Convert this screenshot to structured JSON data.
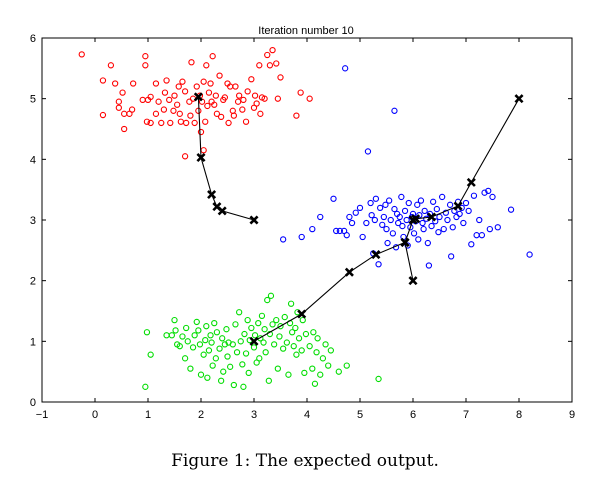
{
  "figure": {
    "caption": "Figure 1: The expected output."
  },
  "chart_data": {
    "type": "scatter",
    "title": "Iteration number 10",
    "xlabel": "",
    "ylabel": "",
    "xlim": [
      -1,
      9
    ],
    "ylim": [
      0,
      6
    ],
    "x_ticks": [
      -1,
      0,
      1,
      2,
      3,
      4,
      5,
      6,
      7,
      8,
      9
    ],
    "y_ticks": [
      0,
      1,
      2,
      3,
      4,
      5,
      6
    ],
    "grid": false,
    "legend": "none",
    "marker": "open-circle",
    "series": [
      {
        "color": "#ff0000",
        "points": [
          [
            -0.25,
            5.73
          ],
          [
            0.15,
            4.73
          ],
          [
            0.15,
            5.3
          ],
          [
            0.3,
            5.55
          ],
          [
            0.38,
            5.25
          ],
          [
            0.45,
            4.95
          ],
          [
            0.45,
            4.85
          ],
          [
            0.52,
            5.1
          ],
          [
            0.55,
            4.75
          ],
          [
            0.55,
            4.5
          ],
          [
            0.65,
            4.75
          ],
          [
            0.7,
            4.82
          ],
          [
            0.72,
            5.25
          ],
          [
            0.9,
            4.98
          ],
          [
            0.95,
            5.7
          ],
          [
            0.95,
            5.55
          ],
          [
            0.98,
            4.62
          ],
          [
            1.0,
            4.98
          ],
          [
            1.05,
            5.03
          ],
          [
            1.05,
            4.6
          ],
          [
            1.15,
            4.75
          ],
          [
            1.15,
            5.25
          ],
          [
            1.2,
            4.95
          ],
          [
            1.25,
            4.6
          ],
          [
            1.3,
            4.82
          ],
          [
            1.32,
            5.1
          ],
          [
            1.35,
            5.3
          ],
          [
            1.4,
            4.98
          ],
          [
            1.42,
            4.6
          ],
          [
            1.48,
            4.8
          ],
          [
            1.5,
            5.05
          ],
          [
            1.55,
            4.9
          ],
          [
            1.58,
            5.2
          ],
          [
            1.6,
            4.75
          ],
          [
            1.62,
            4.62
          ],
          [
            1.65,
            5.28
          ],
          [
            1.7,
            5.12
          ],
          [
            1.7,
            4.05
          ],
          [
            1.72,
            4.6
          ],
          [
            1.78,
            4.95
          ],
          [
            1.8,
            4.72
          ],
          [
            1.82,
            5.6
          ],
          [
            1.85,
            5.0
          ],
          [
            1.88,
            4.6
          ],
          [
            1.92,
            5.2
          ],
          [
            1.95,
            4.8
          ],
          [
            1.98,
            5.05
          ],
          [
            2.0,
            4.45
          ],
          [
            2.02,
            4.95
          ],
          [
            2.05,
            5.28
          ],
          [
            2.05,
            4.15
          ],
          [
            2.08,
            4.62
          ],
          [
            2.1,
            5.55
          ],
          [
            2.12,
            4.88
          ],
          [
            2.15,
            5.1
          ],
          [
            2.18,
            5.25
          ],
          [
            2.2,
            4.95
          ],
          [
            2.22,
            5.7
          ],
          [
            2.25,
            4.9
          ],
          [
            2.28,
            5.05
          ],
          [
            2.3,
            4.75
          ],
          [
            2.35,
            5.38
          ],
          [
            2.38,
            4.7
          ],
          [
            2.42,
            4.98
          ],
          [
            2.45,
            5.02
          ],
          [
            2.5,
            5.25
          ],
          [
            2.52,
            4.6
          ],
          [
            2.55,
            5.2
          ],
          [
            2.6,
            4.8
          ],
          [
            2.62,
            4.72
          ],
          [
            2.65,
            5.2
          ],
          [
            2.7,
            4.95
          ],
          [
            2.72,
            5.05
          ],
          [
            2.78,
            4.82
          ],
          [
            2.8,
            4.98
          ],
          [
            2.85,
            4.62
          ],
          [
            2.88,
            5.12
          ],
          [
            2.95,
            5.32
          ],
          [
            3.0,
            4.85
          ],
          [
            3.02,
            5.05
          ],
          [
            3.05,
            4.92
          ],
          [
            3.1,
            5.55
          ],
          [
            3.12,
            4.75
          ],
          [
            3.15,
            5.02
          ],
          [
            3.2,
            5.0
          ],
          [
            3.25,
            5.72
          ],
          [
            3.3,
            5.55
          ],
          [
            3.35,
            5.8
          ],
          [
            3.42,
            5.58
          ],
          [
            3.45,
            5.0
          ],
          [
            3.5,
            5.35
          ],
          [
            3.8,
            4.72
          ],
          [
            3.88,
            5.1
          ],
          [
            4.05,
            5.0
          ]
        ]
      },
      {
        "color": "#0000ff",
        "points": [
          [
            3.55,
            2.68
          ],
          [
            3.9,
            2.72
          ],
          [
            4.1,
            2.85
          ],
          [
            4.25,
            3.05
          ],
          [
            4.5,
            3.35
          ],
          [
            4.55,
            2.82
          ],
          [
            4.62,
            2.82
          ],
          [
            4.7,
            2.82
          ],
          [
            4.72,
            5.5
          ],
          [
            4.75,
            2.75
          ],
          [
            4.8,
            3.05
          ],
          [
            4.85,
            2.95
          ],
          [
            4.92,
            3.12
          ],
          [
            5.0,
            3.2
          ],
          [
            5.05,
            2.72
          ],
          [
            5.12,
            2.95
          ],
          [
            5.15,
            4.13
          ],
          [
            5.2,
            3.28
          ],
          [
            5.22,
            3.08
          ],
          [
            5.25,
            2.45
          ],
          [
            5.28,
            3.0
          ],
          [
            5.3,
            3.35
          ],
          [
            5.35,
            2.27
          ],
          [
            5.38,
            3.2
          ],
          [
            5.42,
            2.92
          ],
          [
            5.45,
            3.05
          ],
          [
            5.48,
            3.25
          ],
          [
            5.5,
            2.85
          ],
          [
            5.52,
            2.62
          ],
          [
            5.55,
            3.32
          ],
          [
            5.58,
            3.0
          ],
          [
            5.62,
            2.78
          ],
          [
            5.65,
            4.8
          ],
          [
            5.65,
            3.18
          ],
          [
            5.68,
            2.55
          ],
          [
            5.7,
            3.1
          ],
          [
            5.72,
            2.95
          ],
          [
            5.75,
            3.05
          ],
          [
            5.78,
            3.38
          ],
          [
            5.8,
            2.9
          ],
          [
            5.82,
            2.72
          ],
          [
            5.85,
            3.15
          ],
          [
            5.88,
            3.0
          ],
          [
            5.9,
            2.58
          ],
          [
            5.92,
            3.28
          ],
          [
            5.95,
            2.88
          ],
          [
            5.98,
            3.05
          ],
          [
            6.0,
            3.1
          ],
          [
            6.02,
            2.78
          ],
          [
            6.05,
            2.98
          ],
          [
            6.08,
            3.25
          ],
          [
            6.1,
            2.68
          ],
          [
            6.12,
            3.08
          ],
          [
            6.15,
            3.32
          ],
          [
            6.18,
            2.95
          ],
          [
            6.2,
            2.85
          ],
          [
            6.22,
            3.15
          ],
          [
            6.25,
            3.02
          ],
          [
            6.28,
            2.62
          ],
          [
            6.3,
            2.25
          ],
          [
            6.32,
            3.1
          ],
          [
            6.35,
            2.9
          ],
          [
            6.38,
            3.3
          ],
          [
            6.42,
            2.98
          ],
          [
            6.45,
            3.18
          ],
          [
            6.48,
            2.8
          ],
          [
            6.5,
            3.05
          ],
          [
            6.55,
            3.38
          ],
          [
            6.58,
            2.85
          ],
          [
            6.62,
            3.12
          ],
          [
            6.65,
            3.0
          ],
          [
            6.7,
            3.25
          ],
          [
            6.72,
            2.4
          ],
          [
            6.75,
            2.88
          ],
          [
            6.78,
            3.15
          ],
          [
            6.82,
            3.05
          ],
          [
            6.85,
            3.3
          ],
          [
            6.88,
            3.1
          ],
          [
            6.92,
            3.2
          ],
          [
            6.95,
            2.95
          ],
          [
            7.0,
            3.28
          ],
          [
            7.05,
            3.15
          ],
          [
            7.1,
            2.6
          ],
          [
            7.15,
            3.4
          ],
          [
            7.2,
            2.75
          ],
          [
            7.25,
            3.0
          ],
          [
            7.3,
            2.75
          ],
          [
            7.35,
            3.45
          ],
          [
            7.42,
            3.48
          ],
          [
            7.45,
            2.85
          ],
          [
            7.5,
            3.38
          ],
          [
            7.6,
            2.88
          ],
          [
            7.85,
            3.17
          ],
          [
            8.2,
            2.43
          ]
        ]
      },
      {
        "color": "#00dd00",
        "points": [
          [
            0.95,
            0.25
          ],
          [
            0.98,
            1.15
          ],
          [
            1.05,
            0.78
          ],
          [
            1.35,
            1.1
          ],
          [
            1.45,
            1.1
          ],
          [
            1.5,
            1.35
          ],
          [
            1.52,
            1.18
          ],
          [
            1.55,
            0.95
          ],
          [
            1.6,
            0.92
          ],
          [
            1.65,
            1.08
          ],
          [
            1.7,
            0.72
          ],
          [
            1.72,
            1.22
          ],
          [
            1.75,
            1.0
          ],
          [
            1.8,
            0.55
          ],
          [
            1.85,
            0.9
          ],
          [
            1.88,
            1.1
          ],
          [
            1.92,
            1.32
          ],
          [
            1.95,
            1.18
          ],
          [
            1.98,
            0.95
          ],
          [
            2.0,
            0.45
          ],
          [
            2.05,
            0.78
          ],
          [
            2.08,
            1.02
          ],
          [
            2.1,
            1.25
          ],
          [
            2.12,
            0.4
          ],
          [
            2.15,
            0.85
          ],
          [
            2.18,
            1.1
          ],
          [
            2.2,
            0.98
          ],
          [
            2.22,
            0.6
          ],
          [
            2.25,
            1.3
          ],
          [
            2.28,
            0.72
          ],
          [
            2.3,
            1.15
          ],
          [
            2.35,
            0.88
          ],
          [
            2.38,
            0.35
          ],
          [
            2.4,
            1.05
          ],
          [
            2.42,
            0.5
          ],
          [
            2.45,
            0.95
          ],
          [
            2.48,
            1.2
          ],
          [
            2.5,
            0.75
          ],
          [
            2.52,
            0.98
          ],
          [
            2.55,
            0.58
          ],
          [
            2.6,
            0.95
          ],
          [
            2.62,
            0.28
          ],
          [
            2.65,
            1.28
          ],
          [
            2.68,
            0.82
          ],
          [
            2.72,
            1.48
          ],
          [
            2.75,
            1.0
          ],
          [
            2.78,
            0.62
          ],
          [
            2.8,
            0.25
          ],
          [
            2.82,
            1.12
          ],
          [
            2.85,
            0.8
          ],
          [
            2.88,
            1.35
          ],
          [
            2.9,
            0.48
          ],
          [
            2.92,
            1.02
          ],
          [
            2.95,
            1.22
          ],
          [
            3.0,
            0.9
          ],
          [
            3.02,
            1.1
          ],
          [
            3.05,
            0.65
          ],
          [
            3.08,
            1.3
          ],
          [
            3.1,
            0.72
          ],
          [
            3.12,
            1.05
          ],
          [
            3.15,
            1.42
          ],
          [
            3.18,
            0.98
          ],
          [
            3.2,
            1.2
          ],
          [
            3.22,
            0.82
          ],
          [
            3.25,
            1.68
          ],
          [
            3.28,
            0.35
          ],
          [
            3.3,
            1.12
          ],
          [
            3.32,
            1.75
          ],
          [
            3.35,
            1.28
          ],
          [
            3.38,
            0.95
          ],
          [
            3.42,
            1.35
          ],
          [
            3.45,
            0.55
          ],
          [
            3.48,
            1.08
          ],
          [
            3.5,
            1.25
          ],
          [
            3.55,
            0.88
          ],
          [
            3.58,
            1.4
          ],
          [
            3.62,
            0.98
          ],
          [
            3.65,
            0.45
          ],
          [
            3.68,
            1.3
          ],
          [
            3.7,
            1.62
          ],
          [
            3.72,
            1.15
          ],
          [
            3.75,
            0.92
          ],
          [
            3.78,
            1.22
          ],
          [
            3.8,
            0.78
          ],
          [
            3.82,
            1.48
          ],
          [
            3.85,
            1.05
          ],
          [
            3.9,
            0.85
          ],
          [
            3.92,
            1.35
          ],
          [
            3.95,
            0.48
          ],
          [
            3.98,
            1.12
          ],
          [
            4.05,
            0.92
          ],
          [
            4.1,
            0.55
          ],
          [
            4.12,
            1.15
          ],
          [
            4.15,
            0.3
          ],
          [
            4.18,
            0.82
          ],
          [
            4.2,
            1.05
          ],
          [
            4.25,
            0.45
          ],
          [
            4.3,
            0.72
          ],
          [
            4.35,
            0.95
          ],
          [
            4.4,
            0.6
          ],
          [
            4.45,
            0.85
          ],
          [
            4.6,
            0.5
          ],
          [
            4.75,
            0.6
          ],
          [
            5.35,
            0.38
          ]
        ]
      }
    ],
    "centroid_paths": [
      {
        "marker": "x",
        "color": "#000000",
        "points": [
          [
            3.0,
            3.0
          ],
          [
            2.4,
            3.15
          ],
          [
            2.3,
            3.22
          ],
          [
            2.2,
            3.42
          ],
          [
            2.0,
            4.03
          ],
          [
            1.95,
            5.03
          ]
        ]
      },
      {
        "marker": "x",
        "color": "#000000",
        "points": [
          [
            6.0,
            2.0
          ],
          [
            5.85,
            2.63
          ],
          [
            6.0,
            3.0
          ],
          [
            6.05,
            3.02
          ],
          [
            6.35,
            3.05
          ],
          [
            6.85,
            3.23
          ],
          [
            7.1,
            3.62
          ],
          [
            8.0,
            5.0
          ]
        ]
      },
      {
        "marker": "x",
        "color": "#000000",
        "points": [
          [
            3.0,
            1.0
          ],
          [
            3.9,
            1.45
          ],
          [
            4.8,
            2.14
          ],
          [
            5.3,
            2.43
          ],
          [
            5.85,
            2.63
          ]
        ]
      }
    ]
  }
}
